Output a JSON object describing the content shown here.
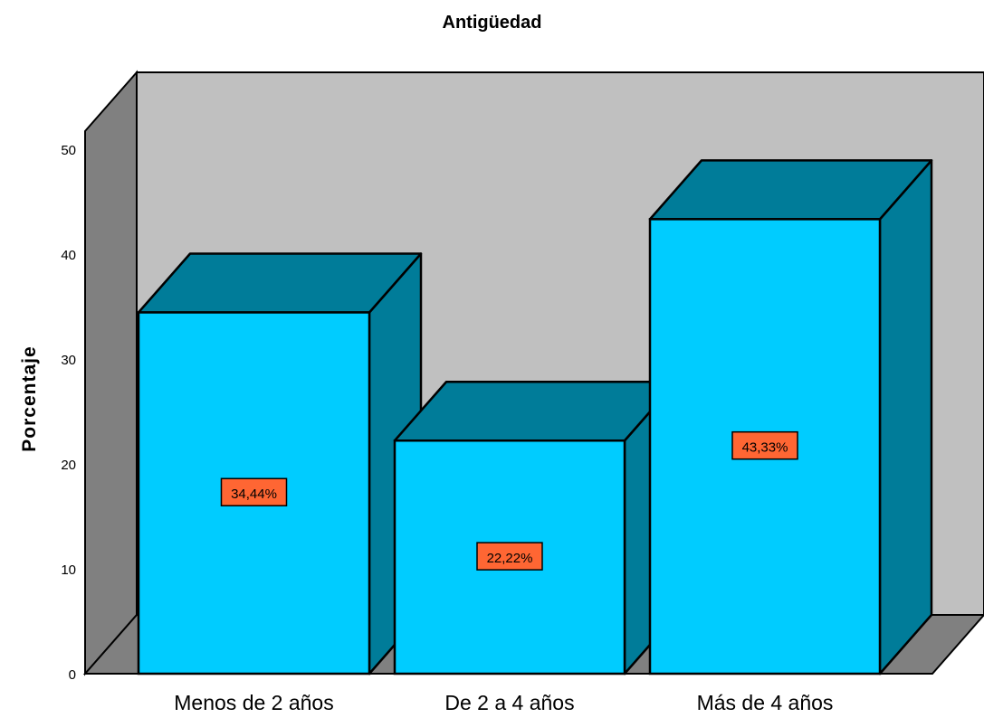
{
  "chart_data": {
    "type": "bar",
    "title": "Antigüedad",
    "xlabel": "",
    "ylabel": "Porcentaje",
    "categories": [
      "Menos de 2 años",
      "De 2 a 4 años",
      "Más de 4 años"
    ],
    "values": [
      34.44,
      22.22,
      43.33
    ],
    "data_labels": [
      "34,44%",
      "22,22%",
      "43,33%"
    ],
    "ylim": [
      0,
      50
    ],
    "yticks": [
      0,
      10,
      20,
      30,
      40,
      50
    ],
    "grid": false,
    "legend": "none",
    "colors": {
      "bar_front": "#00CCFF",
      "bar_side": "#007C99",
      "back_wall": "#C0C0C0",
      "side_wall": "#808080",
      "floor": "#808080",
      "label_box": "#FF6633"
    }
  }
}
